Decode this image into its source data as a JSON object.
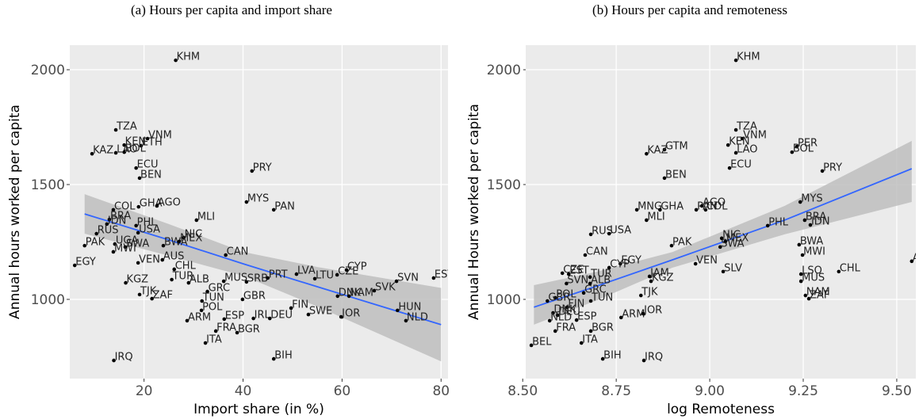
{
  "chart_data": [
    {
      "type": "scatter",
      "title": "(a) Hours per capita and import share",
      "xlabel": "Import share (in %)",
      "ylabel": "Annual hours worked  per capita",
      "xlim": [
        5,
        81.4
      ],
      "ylim": [
        655,
        2107
      ],
      "xticks": [
        20,
        40,
        60,
        80
      ],
      "yticks": [
        1000,
        1500,
        2000
      ],
      "grid": true,
      "color": "#000000",
      "labels": [
        "KHM",
        "TZA",
        "VNM",
        "KEN",
        "ETH",
        "KAZ",
        "LAO",
        "BOL",
        "ECU",
        "BEN",
        "PRY",
        "COL",
        "GHA",
        "AGO",
        "MYS",
        "PAN",
        "BRA",
        "IDN",
        "PHL",
        "MLI",
        "RUS",
        "USA",
        "PAK",
        "UGA",
        "SWA",
        "MWI",
        "BWA",
        "NIC",
        "MEX",
        "CAN",
        "EGY",
        "VEN",
        "AUS",
        "CHL",
        "LVA",
        "KGZ",
        "TUR",
        "ALB",
        "MUS",
        "SRB",
        "PRT",
        "LTU",
        "CZE",
        "CYP",
        "SVN",
        "EST",
        "TJK",
        "ZAF",
        "GRC",
        "TUN",
        "GBR",
        "SVK",
        "DNK",
        "NAM",
        "HUN",
        "NLD",
        "FIN",
        "SWE",
        "JOR",
        "POL",
        "ARM",
        "ESP",
        "IRL",
        "DEU",
        "ITA",
        "FRA",
        "BGR",
        "IRQ",
        "BIH"
      ],
      "x": [
        26.4,
        14.3,
        20.7,
        16.0,
        19.4,
        9.5,
        14.3,
        16.0,
        18.4,
        19.1,
        41.8,
        13.8,
        18.9,
        22.6,
        40.7,
        46.2,
        13.0,
        12.5,
        18.4,
        30.6,
        10.4,
        18.8,
        8.0,
        14.1,
        16.2,
        13.8,
        23.9,
        28.0,
        27.1,
        36.5,
        6.0,
        18.8,
        23.7,
        26.1,
        50.8,
        16.3,
        25.6,
        29.0,
        36.1,
        40.7,
        45.0,
        54.5,
        59.0,
        60.9,
        71.0,
        78.5,
        19.1,
        21.6,
        32.8,
        31.7,
        39.9,
        66.5,
        59.1,
        61.4,
        71.2,
        72.9,
        49.7,
        53.2,
        59.8,
        31.6,
        28.7,
        36.2,
        42.1,
        45.4,
        32.4,
        34.5,
        38.8,
        13.9,
        46.2
      ],
      "values": [
        2041,
        1738,
        1700,
        1672,
        1669,
        1634,
        1638,
        1641,
        1572,
        1528,
        1559,
        1390,
        1403,
        1407,
        1424,
        1390,
        1348,
        1328,
        1321,
        1345,
        1286,
        1290,
        1234,
        1241,
        1228,
        1207,
        1234,
        1269,
        1252,
        1193,
        1148,
        1159,
        1172,
        1131,
        1110,
        1072,
        1086,
        1072,
        1079,
        1076,
        1093,
        1090,
        1107,
        1128,
        1079,
        1093,
        1021,
        1003,
        1034,
        993,
        1000,
        1038,
        1014,
        1014,
        952,
        907,
        962,
        934,
        924,
        952,
        907,
        914,
        917,
        917,
        810,
        862,
        855,
        734,
        741
      ],
      "fit": {
        "color": "#3366ff",
        "band_color": "#bebebe",
        "x": [
          8,
          25,
          40,
          55,
          80
        ],
        "values": [
          1372,
          1259,
          1155,
          1055,
          890
        ],
        "upper": [
          1458,
          1328,
          1207,
          1141,
          1050
        ],
        "lower": [
          1286,
          1190,
          1103,
          969,
          730
        ]
      }
    },
    {
      "type": "scatter",
      "title": "(b) Hours per capita and remoteness",
      "xlabel": "log Remoteness",
      "ylabel": "Annual Hours worked  per capita",
      "xlim": [
        8.508,
        9.551
      ],
      "ylim": [
        655,
        2107
      ],
      "xticks": [
        {
          "value": 8.5,
          "label": "8.50"
        },
        8.75,
        {
          "value": 9,
          "label": "9.00"
        },
        9.25,
        {
          "value": 9.5,
          "label": "9.50"
        }
      ],
      "yticks": [
        1000,
        1500,
        2000
      ],
      "grid": true,
      "color": "#000000",
      "labels": [
        "KHM",
        "TZA",
        "VNM",
        "KEN",
        "PER",
        "BOL",
        "LAO",
        "GTM",
        "KAZ",
        "ECU",
        "PRY",
        "BEN",
        "MYS",
        "MNG",
        "GHA",
        "PAN",
        "AGO",
        "COL",
        "MLI",
        "BRA",
        "IDN",
        "PHL",
        "RUS",
        "USA",
        "PAK",
        "NIC",
        "MEX",
        "SWA",
        "BWA",
        "CAN",
        "EGY",
        "CYP",
        "VEN",
        "SLV",
        "MWI",
        "AUS",
        "CHL",
        "LSO",
        "MUS",
        "CZE",
        "EST",
        "SVN",
        "TUR",
        "ALB",
        "KGZ",
        "JAM",
        "TJK",
        "GRC",
        "TUN",
        "NAM",
        "ZAF",
        "POL",
        "GBR",
        "FIN",
        "DNK",
        "DEU",
        "ESP",
        "NLD",
        "ARM",
        "JOR",
        "BGR",
        "FRA",
        "BEL",
        "ITA",
        "BIH",
        "IRQ"
      ],
      "x": [
        9.07,
        9.07,
        9.087,
        9.049,
        9.233,
        9.22,
        9.07,
        8.879,
        8.831,
        9.053,
        9.301,
        8.879,
        9.242,
        8.805,
        8.867,
        8.964,
        8.979,
        8.989,
        8.831,
        9.254,
        9.269,
        9.155,
        8.682,
        8.731,
        8.898,
        9.032,
        9.042,
        9.028,
        9.239,
        8.667,
        8.761,
        8.731,
        8.962,
        9.036,
        9.248,
        9.54,
        9.345,
        9.244,
        9.244,
        8.606,
        8.623,
        8.617,
        8.68,
        8.68,
        8.843,
        8.839,
        8.816,
        8.663,
        8.682,
        9.256,
        9.265,
        8.587,
        8.566,
        8.619,
        8.581,
        8.593,
        8.644,
        8.572,
        8.763,
        8.822,
        8.682,
        8.587,
        8.523,
        8.657,
        8.714,
        8.824
      ],
      "values": [
        2041,
        1738,
        1700,
        1672,
        1665,
        1641,
        1638,
        1652,
        1634,
        1572,
        1559,
        1528,
        1424,
        1390,
        1390,
        1390,
        1407,
        1390,
        1345,
        1345,
        1324,
        1321,
        1283,
        1286,
        1234,
        1266,
        1252,
        1228,
        1238,
        1193,
        1155,
        1138,
        1155,
        1121,
        1193,
        1166,
        1121,
        1110,
        1079,
        1114,
        1110,
        1069,
        1097,
        1069,
        1079,
        1100,
        1017,
        1028,
        993,
        1017,
        1003,
        1007,
        993,
        966,
        941,
        931,
        910,
        907,
        921,
        938,
        862,
        862,
        800,
        810,
        741,
        734
      ],
      "fit": {
        "color": "#3366ff",
        "band_color": "#bebebe",
        "x": [
          8.53,
          8.7,
          8.9,
          9.2,
          9.54
        ],
        "values": [
          966,
          1059,
          1172,
          1345,
          1569
        ],
        "upper": [
          1062,
          1121,
          1206,
          1407,
          1690
        ],
        "lower": [
          890,
          997,
          1138,
          1283,
          1424
        ]
      }
    }
  ]
}
